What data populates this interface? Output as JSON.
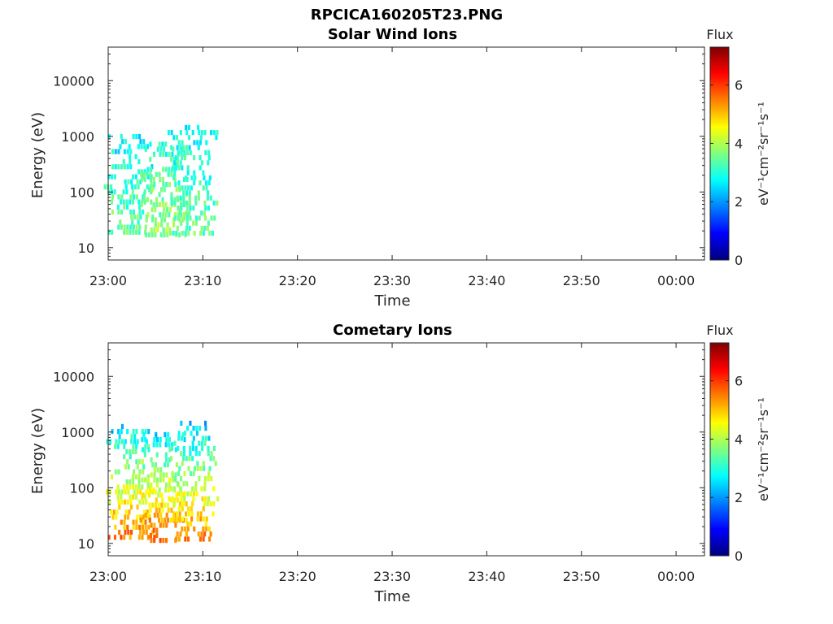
{
  "figure_title": "RPCICA160205T23.PNG",
  "chart_data": [
    {
      "type": "heatmap",
      "title": "Solar Wind Ions",
      "xlabel": "Time",
      "ylabel": "Energy (eV)",
      "x_ticks": [
        "23:00",
        "23:10",
        "23:20",
        "23:30",
        "23:40",
        "23:50",
        "00:00"
      ],
      "x_tick_minutes": [
        0,
        10,
        20,
        30,
        40,
        50,
        60
      ],
      "xlim_minutes": [
        0,
        63
      ],
      "y_scale": "log",
      "y_ticks": [
        "10",
        "100",
        "1000",
        "10000"
      ],
      "y_tick_values": [
        10,
        100,
        1000,
        10000
      ],
      "ylim": [
        6,
        40000
      ],
      "colorbar": {
        "title": "Flux",
        "label": "eV⁻¹cm⁻²sr⁻¹s⁻¹",
        "ticks": [
          "0",
          "2",
          "4",
          "6"
        ],
        "tick_values": [
          0,
          2,
          4,
          6
        ],
        "range": [
          0,
          7.3
        ],
        "colormap": "jet"
      },
      "bursts": [
        {
          "center_minute": 2.2,
          "energy_range": [
            18,
            1100
          ],
          "flux_low_energy": 3.6,
          "flux_high_energy": 2.6
        },
        {
          "center_minute": 5.9,
          "energy_range": [
            18,
            800
          ],
          "flux_low_energy": 3.9,
          "flux_high_energy": 3.0
        },
        {
          "center_minute": 8.9,
          "energy_range": [
            18,
            1600
          ],
          "flux_low_energy": 3.5,
          "flux_high_energy": 2.8
        }
      ]
    },
    {
      "type": "heatmap",
      "title": "Cometary Ions",
      "xlabel": "Time",
      "ylabel": "Energy (eV)",
      "x_ticks": [
        "23:00",
        "23:10",
        "23:20",
        "23:30",
        "23:40",
        "23:50",
        "00:00"
      ],
      "x_tick_minutes": [
        0,
        10,
        20,
        30,
        40,
        50,
        60
      ],
      "xlim_minutes": [
        0,
        63
      ],
      "y_scale": "log",
      "y_ticks": [
        "10",
        "100",
        "1000",
        "10000"
      ],
      "y_tick_values": [
        10,
        100,
        1000,
        10000
      ],
      "ylim": [
        6,
        40000
      ],
      "colorbar": {
        "title": "Flux",
        "label": "eV⁻¹cm⁻²sr⁻¹s⁻¹",
        "ticks": [
          "0",
          "2",
          "4",
          "6"
        ],
        "tick_values": [
          0,
          2,
          4,
          6
        ],
        "range": [
          0,
          7.3
        ],
        "colormap": "jet"
      },
      "bursts": [
        {
          "center_minute": 2.4,
          "energy_range": [
            12,
            1400
          ],
          "flux_low_energy": 5.6,
          "flux_high_energy": 2.6
        },
        {
          "center_minute": 5.8,
          "energy_range": [
            12,
            1000
          ],
          "flux_low_energy": 5.8,
          "flux_high_energy": 2.6
        },
        {
          "center_minute": 9.0,
          "energy_range": [
            12,
            1600
          ],
          "flux_low_energy": 5.5,
          "flux_high_energy": 2.4
        }
      ]
    }
  ]
}
